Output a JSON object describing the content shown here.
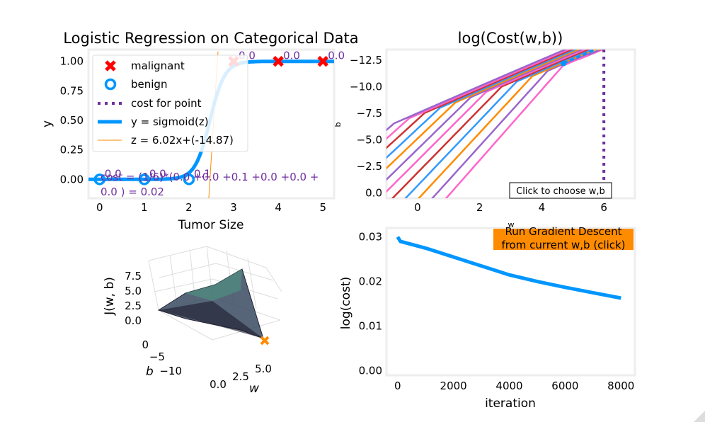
{
  "colors": {
    "malignant": "#ff0000",
    "benign": "#0096ff",
    "cost_line": "#7030a0",
    "sigmoid": "#0096ff",
    "z_line": "#ff8c00",
    "button_bg": "#ff8c00",
    "axes_face": "#ffffff",
    "axes_border": "#eeeeee"
  },
  "chart_data": [
    {
      "type": "scatter",
      "title": "Logistic Regression on Categorical Data",
      "xlabel": "Tumor Size",
      "ylabel": "y",
      "xlim": [
        -0.25,
        5.25
      ],
      "ylim": [
        -0.16,
        1.1
      ],
      "xticks": [
        "0",
        "1",
        "2",
        "3",
        "4",
        "5"
      ],
      "yticks": [
        "0.00",
        "0.25",
        "0.50",
        "0.75",
        "1.00"
      ],
      "grid": false,
      "legend_position": "top-left",
      "legend": [
        "malignant",
        "benign",
        "cost for point",
        "y = sigmoid(z)",
        "z = 6.02x+(-14.87)"
      ],
      "malignant": {
        "x": [
          3,
          4,
          5
        ],
        "y": [
          1,
          1,
          1
        ]
      },
      "benign": {
        "x": [
          0,
          1,
          2
        ],
        "y": [
          0,
          0,
          0
        ]
      },
      "point_cost_labels": [
        {
          "x": 3,
          "y": 1,
          "text": "0.0"
        },
        {
          "x": 4,
          "y": 1,
          "text": "0.0"
        },
        {
          "x": 5,
          "y": 1,
          "text": "0.0"
        },
        {
          "x": 0,
          "y": 0,
          "text": "0.0"
        },
        {
          "x": 1,
          "y": 0,
          "text": "0.0"
        },
        {
          "x": 2,
          "y": 0,
          "text": "0.1"
        }
      ],
      "cost_equation_line1": "cost = (1/6)*(0.0 +0.0 +0.1 +0.0 +0.0 +",
      "cost_equation_line2": "0.0 ) = 0.02",
      "w": 6.02,
      "b": -14.87
    },
    {
      "type": "contour",
      "title": "log(Cost(w,b))",
      "xlabel": "w",
      "ylabel": "b",
      "xlim": [
        -1,
        7
      ],
      "ylim": [
        0.5,
        -13.5
      ],
      "xticks": [
        "0",
        "2",
        "4",
        "6"
      ],
      "yticks": [
        "−12.5",
        "−10.0",
        "−7.5",
        "−5.0",
        "−2.5",
        "0.0"
      ],
      "current_w": 6,
      "path_end": {
        "w": 4.7,
        "b": -12.2
      },
      "click_note": "Click to choose w,b"
    },
    {
      "type": "surface",
      "zlabel": "J(w, b)",
      "xlabel": "w",
      "ylabel": "b",
      "zticks": [
        "0.0",
        "2.5",
        "5.0",
        "7.5"
      ],
      "yticks": [
        "0",
        "−5",
        "−10"
      ],
      "xticks": [
        "0.0",
        "2.5",
        "5.0"
      ]
    },
    {
      "type": "line",
      "xlabel": "iteration",
      "ylabel": "log(cost)",
      "xlim": [
        -400,
        8500
      ],
      "ylim": [
        -0.001,
        0.032
      ],
      "xticks": [
        "0",
        "2000",
        "4000",
        "6000",
        "8000"
      ],
      "yticks": [
        "0.00",
        "0.01",
        "0.02",
        "0.03"
      ],
      "x": [
        0,
        100,
        1000,
        2000,
        3000,
        4000,
        5000,
        6000,
        7000,
        8000
      ],
      "y": [
        0.03,
        0.029,
        0.0275,
        0.0255,
        0.0235,
        0.0215,
        0.02,
        0.0187,
        0.0175,
        0.0163
      ],
      "button_line1": "Run Gradient Descent",
      "button_line2": "from current w,b (click)"
    }
  ]
}
